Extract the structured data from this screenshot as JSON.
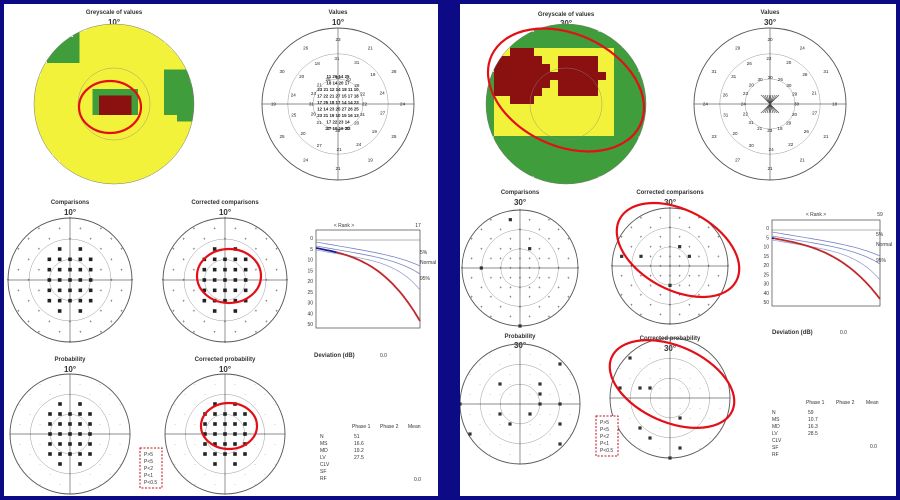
{
  "left": {
    "grayscale": {
      "title": "Greyscale of values",
      "deg": "10°"
    },
    "values": {
      "title": "Values",
      "deg": "10°"
    },
    "comparisons": {
      "title": "Comparisons",
      "deg": "10°"
    },
    "corrected_comparisons": {
      "title": "Corrected comparisons",
      "deg": "10°"
    },
    "probability": {
      "title": "Probability",
      "deg": "10°"
    },
    "corrected_probability": {
      "title": "Corrected probability",
      "deg": "10°"
    },
    "bebie": {
      "marker": "< Rank >",
      "top_value": "17",
      "labels": [
        "5%",
        "Normal",
        "95%"
      ],
      "ticks": [
        "0",
        "5",
        "10",
        "15",
        "20",
        "25",
        "30",
        "40",
        "50"
      ]
    },
    "deviation_label": "Deviation (dB)",
    "deviation_value": "0.0",
    "phases": [
      "Phase 1",
      "Phase 2",
      "Mean"
    ],
    "rows": [
      "N",
      "MS",
      "MD",
      "LV",
      "CLV",
      "SF",
      "RF"
    ],
    "phase1": [
      "51",
      "16.6",
      "19.2",
      "27.5"
    ],
    "legend": [
      "P>5",
      "P<5",
      "P<2",
      "P<1",
      "P<0.5"
    ],
    "footer": "0.0"
  },
  "right": {
    "grayscale": {
      "title": "Greyscale of values",
      "deg": "30°"
    },
    "values": {
      "title": "Values",
      "deg": "30°"
    },
    "comparisons": {
      "title": "Comparisons",
      "deg": "30°"
    },
    "corrected_comparisons": {
      "title": "Corrected comparisons",
      "deg": "30°"
    },
    "probability": {
      "title": "Probability",
      "deg": "30°"
    },
    "corrected_probability": {
      "title": "Corrected probability",
      "deg": "30°"
    },
    "bebie": {
      "marker": "< Rank >",
      "top_value": "59",
      "labels": [
        "5%",
        "Normal",
        "95%"
      ],
      "ticks": [
        "0",
        "5",
        "10",
        "15",
        "20",
        "25",
        "30",
        "40",
        "50"
      ]
    },
    "deviation_label": "Deviation (dB)",
    "deviation_value": "0.0",
    "phases": [
      "Phase 1",
      "Phase 2",
      "Mean"
    ],
    "rows": [
      "N",
      "MS",
      "MD",
      "LV",
      "CLV",
      "SF",
      "RF"
    ],
    "phase1": [
      "59",
      "10.7",
      "16.3",
      "28.5"
    ],
    "legend": [
      "P>5",
      "P<5",
      "P<2",
      "P<1",
      "P<0.5"
    ],
    "footer": "0.0"
  },
  "colors": {
    "background": "#0d0a86",
    "yellow": "#f2f23a",
    "green": "#3f9d3c",
    "darkred": "#8b1010",
    "highlight": "#e40f16"
  }
}
